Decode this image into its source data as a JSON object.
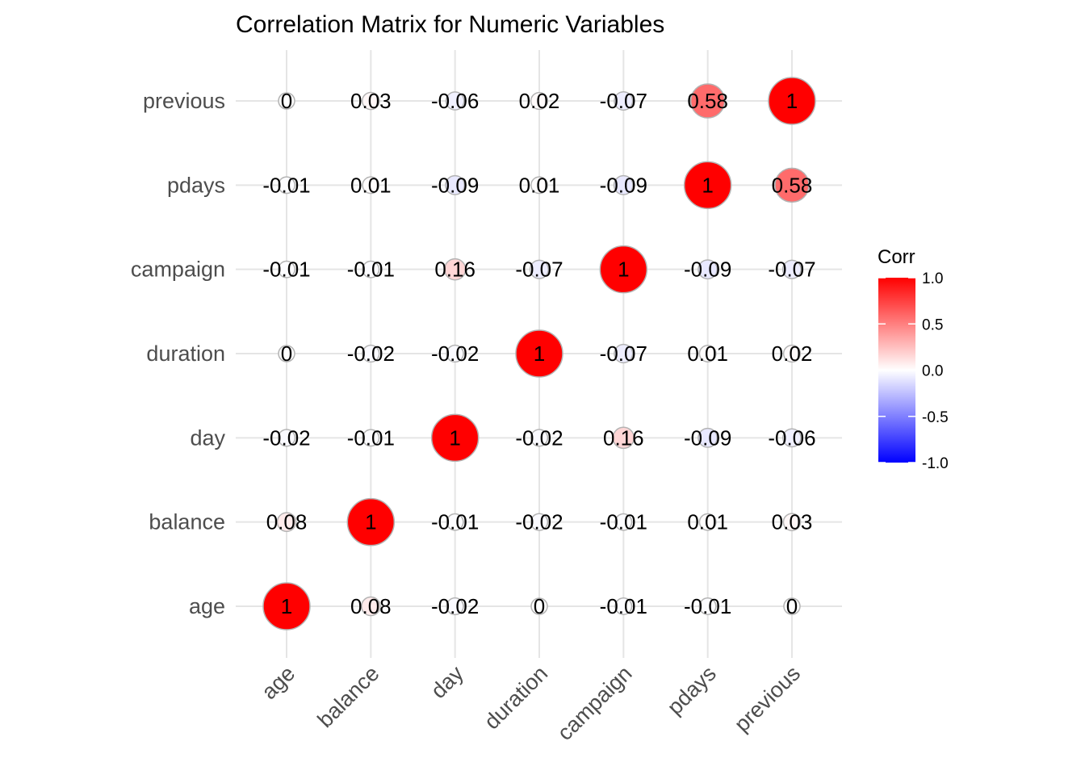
{
  "chart_data": {
    "type": "heatmap",
    "title": "Correlation Matrix for Numeric Variables",
    "xlabel": "",
    "ylabel": "",
    "variables": [
      "age",
      "balance",
      "day",
      "duration",
      "campaign",
      "pdays",
      "previous"
    ],
    "labels": [
      [
        "1",
        "0.08",
        "-0.02",
        "0",
        "-0.01",
        "-0.01",
        "0"
      ],
      [
        "0.08",
        "1",
        "-0.01",
        "-0.02",
        "-0.01",
        "0.01",
        "0.03"
      ],
      [
        "-0.02",
        "-0.01",
        "1",
        "-0.02",
        "0.16",
        "-0.09",
        "-0.06"
      ],
      [
        "0",
        "-0.02",
        "-0.02",
        "1",
        "-0.07",
        "0.01",
        "0.02"
      ],
      [
        "-0.01",
        "-0.01",
        "0.16",
        "-0.07",
        "1",
        "-0.09",
        "-0.07"
      ],
      [
        "-0.01",
        "0.01",
        "-0.09",
        "0.01",
        "-0.09",
        "1",
        "0.58"
      ],
      [
        "0",
        "0.03",
        "-0.06",
        "0.02",
        "-0.07",
        "0.58",
        "1"
      ]
    ],
    "values": [
      [
        1,
        0.08,
        -0.02,
        0,
        -0.01,
        -0.01,
        0
      ],
      [
        0.08,
        1,
        -0.01,
        -0.02,
        -0.01,
        0.01,
        0.03
      ],
      [
        -0.02,
        -0.01,
        1,
        -0.02,
        0.16,
        -0.09,
        -0.06
      ],
      [
        0,
        -0.02,
        -0.02,
        1,
        -0.07,
        0.01,
        0.02
      ],
      [
        -0.01,
        -0.01,
        0.16,
        -0.07,
        1,
        -0.09,
        -0.07
      ],
      [
        -0.01,
        0.01,
        -0.09,
        0.01,
        -0.09,
        1,
        0.58
      ],
      [
        0,
        0.03,
        -0.06,
        0.02,
        -0.07,
        0.58,
        1
      ]
    ],
    "legend": {
      "title": "Corr",
      "position": "right",
      "ticks": [
        "1.0",
        "0.5",
        "0.0",
        "-0.5",
        "-1.0"
      ],
      "tick_values": [
        1,
        0.5,
        0,
        -0.5,
        -1
      ],
      "range": [
        -1,
        1
      ],
      "colors": {
        "low": "#0000ff",
        "mid": "#ffffff",
        "high": "#ff0000"
      }
    },
    "grid": true,
    "marker": "circle sized by |correlation|",
    "marker_outline_color": "#b3b3b3",
    "grid_color": "#e5e5e5"
  }
}
